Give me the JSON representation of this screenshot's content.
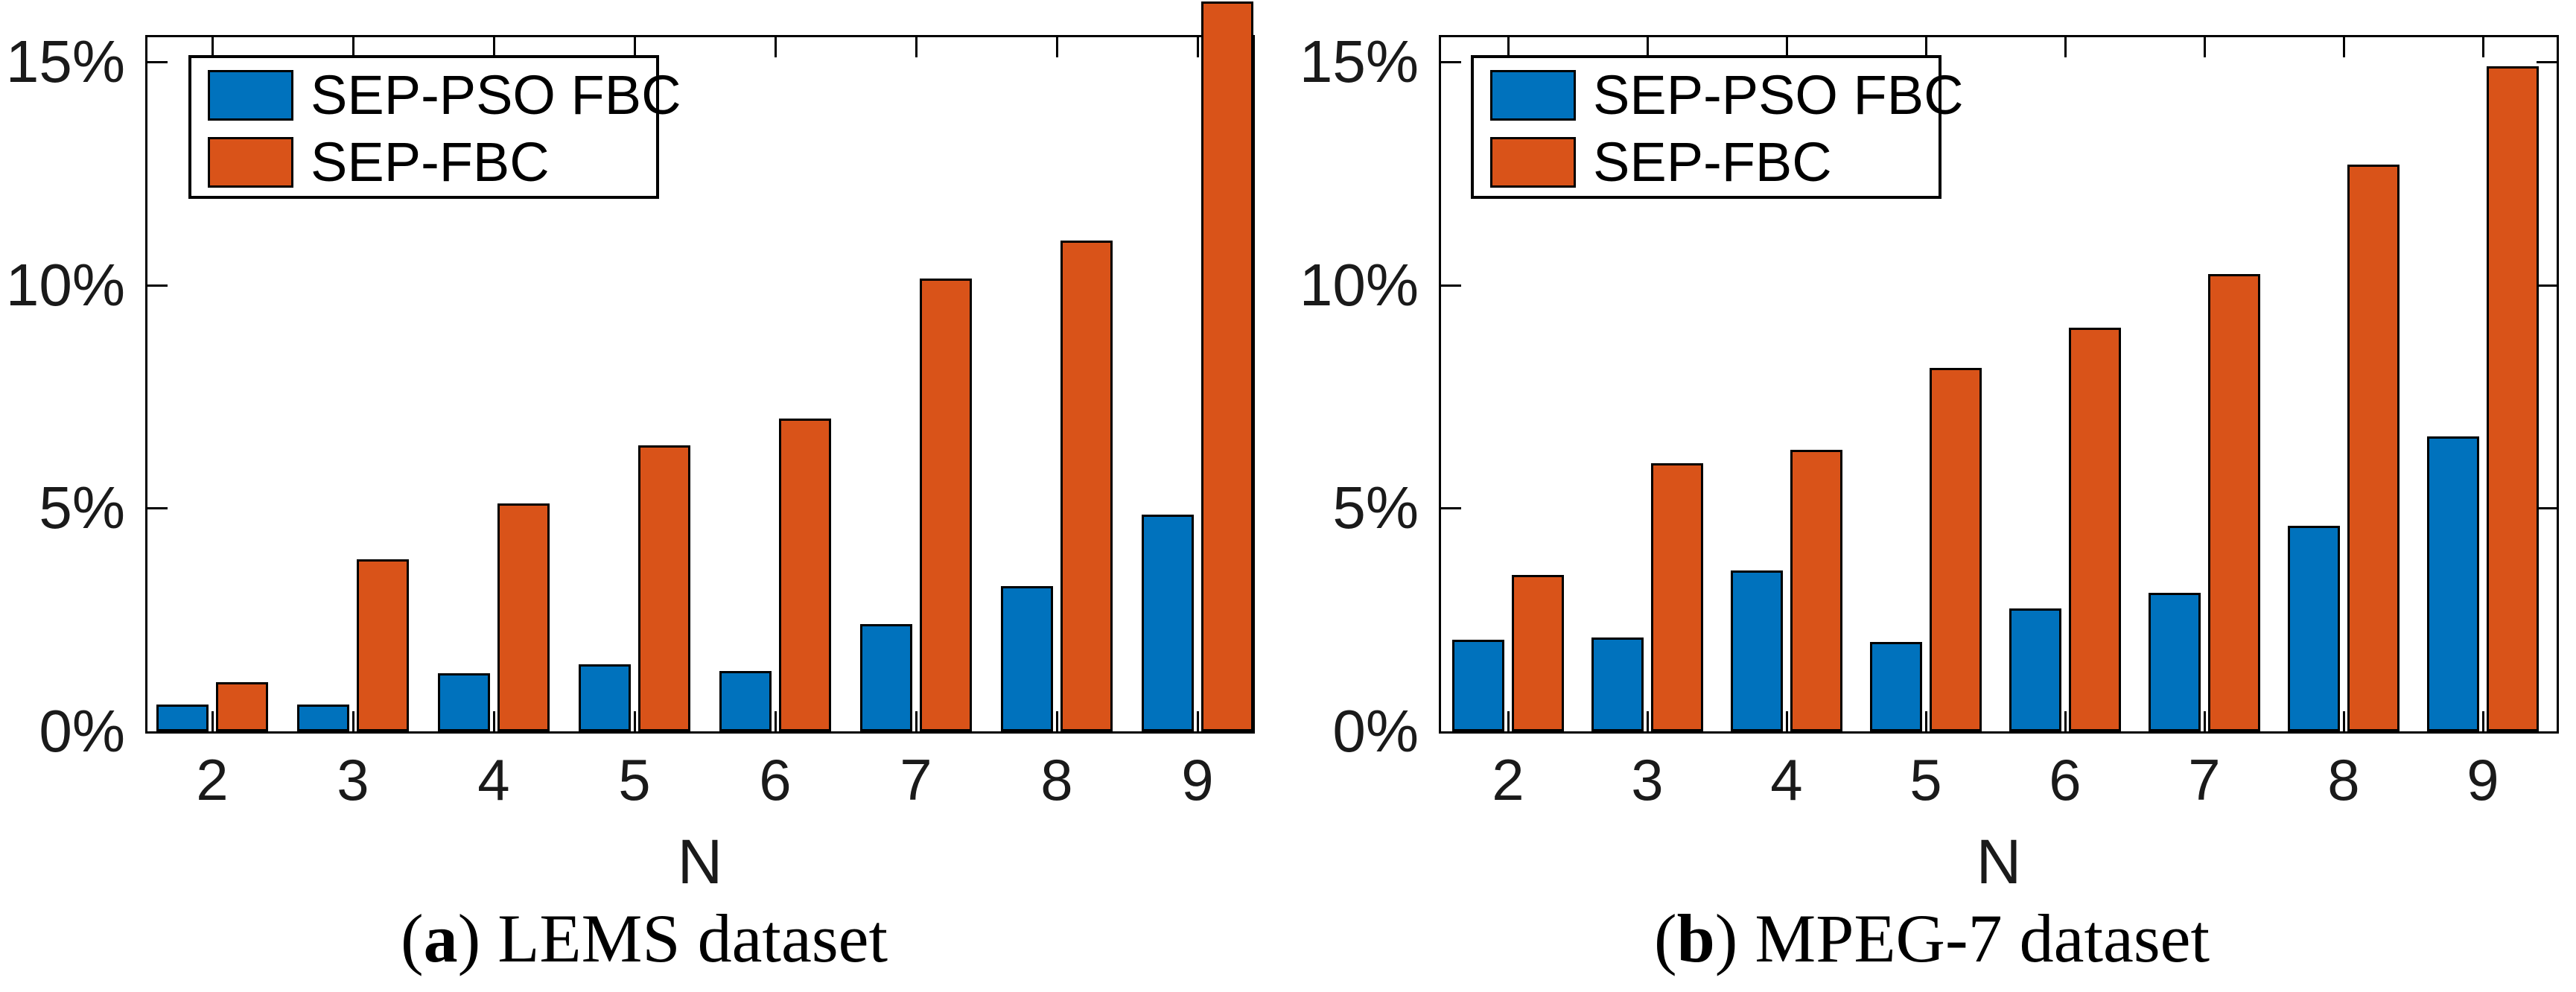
{
  "figure": {
    "background": "#ffffff",
    "text_color": "#1a1a1a",
    "axis_color": "#000000"
  },
  "legend": {
    "items": [
      {
        "label": "SEP-PSO FBC",
        "color": "#0072BD"
      },
      {
        "label": "SEP-FBC",
        "color": "#D95319"
      }
    ]
  },
  "captions": {
    "a": {
      "prefix": "(",
      "letter": "a",
      "suffix": ") ",
      "text": "LEMS dataset"
    },
    "b": {
      "prefix": "(",
      "letter": "b",
      "suffix": ") ",
      "text": "MPEG-7 dataset"
    }
  },
  "chart_data": [
    {
      "type": "bar",
      "panel": "a",
      "title": "(a) LEMS dataset",
      "xlabel": "N",
      "ylabel": "",
      "categories": [
        2,
        3,
        4,
        5,
        6,
        7,
        8,
        9
      ],
      "series": [
        {
          "name": "SEP-PSO FBC",
          "color": "#0072BD",
          "values": [
            0.6,
            0.6,
            1.3,
            1.5,
            1.35,
            2.4,
            3.25,
            4.85
          ]
        },
        {
          "name": "SEP-FBC",
          "color": "#D95319",
          "values": [
            1.1,
            3.85,
            5.1,
            6.4,
            7.0,
            10.15,
            11.0,
            16.35
          ]
        }
      ],
      "ylim": [
        0,
        15.55
      ],
      "yticks": [
        {
          "value": 0,
          "label": "0%"
        },
        {
          "value": 5,
          "label": "5%"
        },
        {
          "value": 10,
          "label": "10%"
        },
        {
          "value": 15,
          "label": "15%"
        }
      ],
      "grid": false,
      "legend_position": "top-left",
      "notes": "SEP-FBC bar at N=9 exceeds the axis top (>15.5%) and is clipped at the top of the image"
    },
    {
      "type": "bar",
      "panel": "b",
      "title": "(b) MPEG-7 dataset",
      "xlabel": "N",
      "ylabel": "",
      "categories": [
        2,
        3,
        4,
        5,
        6,
        7,
        8,
        9
      ],
      "series": [
        {
          "name": "SEP-PSO FBC",
          "color": "#0072BD",
          "values": [
            2.05,
            2.1,
            3.6,
            2.0,
            2.75,
            3.1,
            4.6,
            6.6
          ]
        },
        {
          "name": "SEP-FBC",
          "color": "#D95319",
          "values": [
            3.5,
            6.0,
            6.3,
            8.15,
            9.05,
            10.25,
            12.7,
            14.9
          ]
        }
      ],
      "ylim": [
        0,
        15.55
      ],
      "yticks": [
        {
          "value": 0,
          "label": "0%"
        },
        {
          "value": 5,
          "label": "5%"
        },
        {
          "value": 10,
          "label": "10%"
        },
        {
          "value": 15,
          "label": "15%"
        }
      ],
      "grid": false,
      "legend_position": "top-left",
      "notes": ""
    }
  ]
}
